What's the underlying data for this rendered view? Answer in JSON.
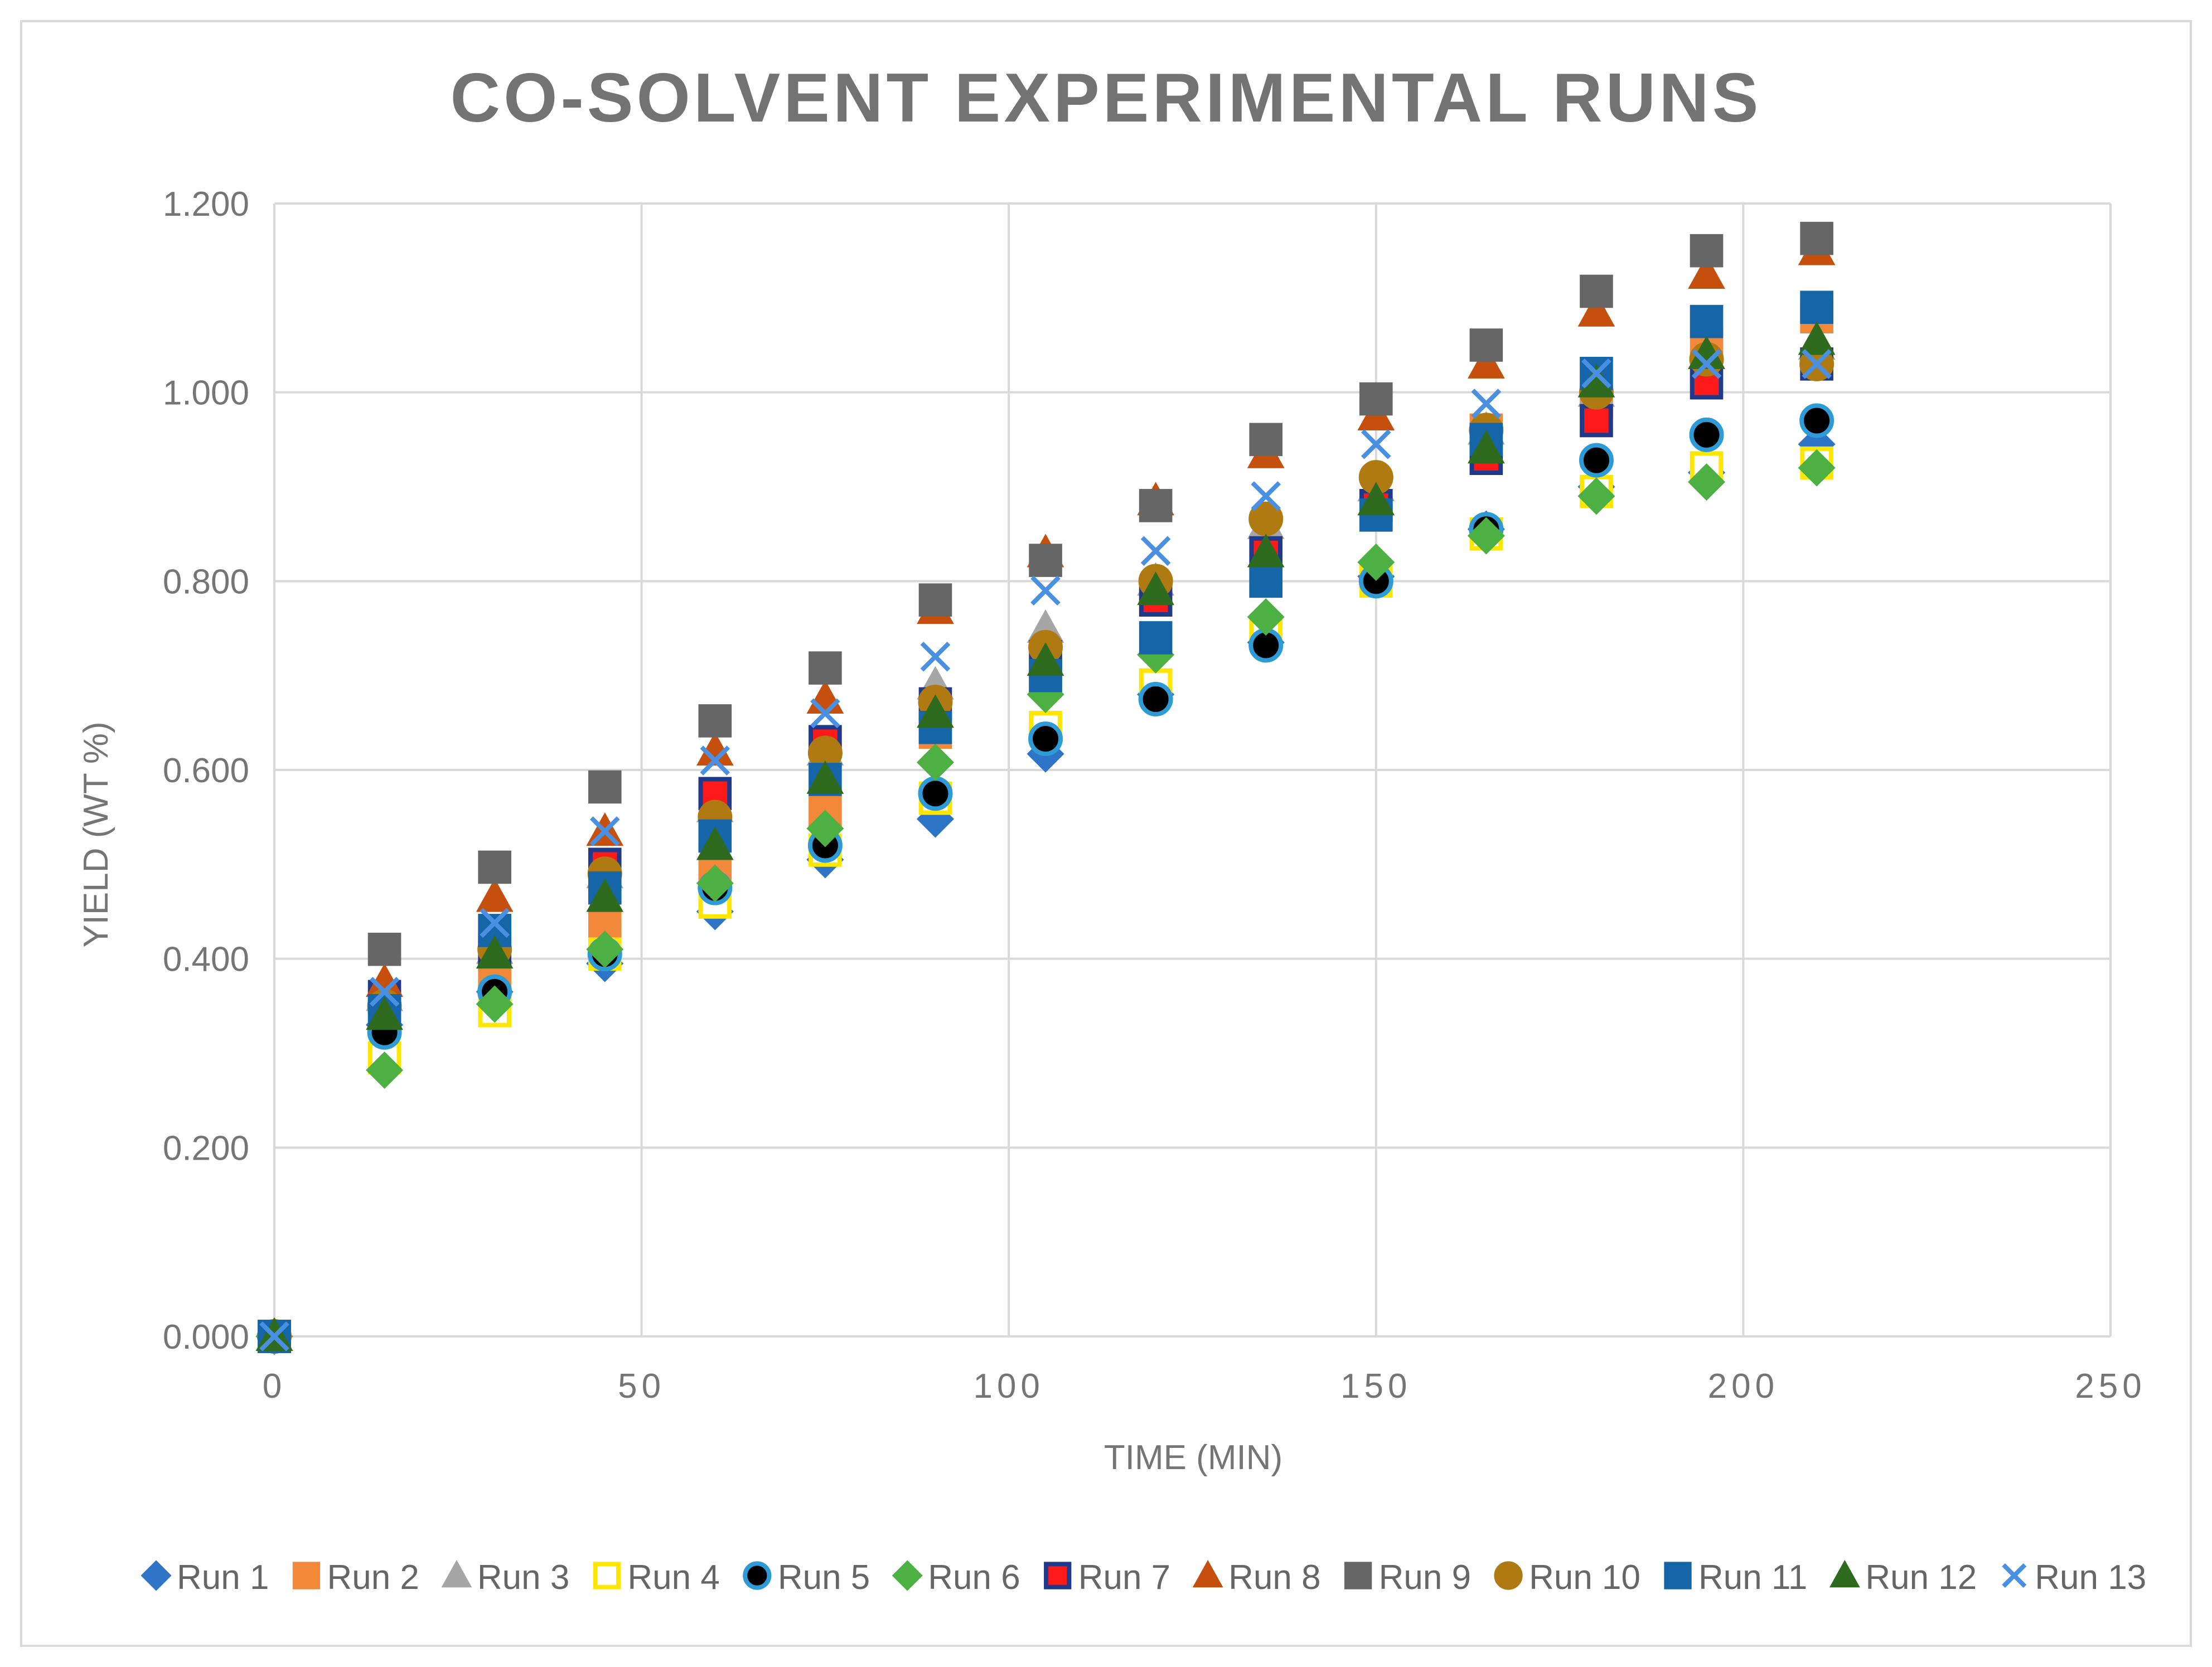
{
  "chart_data": {
    "type": "scatter",
    "title": "CO-SOLVENT EXPERIMENTAL RUNS",
    "xlabel": "TIME (MIN)",
    "ylabel": "YIELD (WT %)",
    "xlim": [
      0,
      250
    ],
    "ylim": [
      0,
      1.2
    ],
    "xticks": [
      "0",
      "50",
      "100",
      "150",
      "200",
      "250"
    ],
    "yticks": [
      "0.000",
      "0.200",
      "0.400",
      "0.600",
      "0.800",
      "1.000",
      "1.200"
    ],
    "grid": true,
    "legend_position": "bottom",
    "x": [
      0,
      15,
      30,
      45,
      60,
      75,
      90,
      105,
      120,
      135,
      150,
      165,
      180,
      195,
      210
    ],
    "series": [
      {
        "name": "Run 1",
        "marker": "diamond",
        "color": "#2E75C8",
        "stroke": "#2E75C8",
        "values": [
          0,
          0.33,
          0.365,
          0.395,
          0.45,
          0.505,
          0.548,
          0.617,
          0.68,
          0.735,
          0.805,
          0.855,
          0.9,
          0.915,
          0.945
        ]
      },
      {
        "name": "Run 2",
        "marker": "square",
        "color": "#F2883A",
        "stroke": "#F2883A",
        "values": [
          0,
          0.35,
          0.385,
          0.435,
          0.49,
          0.555,
          0.64,
          0.7,
          0.78,
          0.8,
          0.88,
          0.96,
          0.99,
          1.05,
          1.08
        ]
      },
      {
        "name": "Run 3",
        "marker": "triangle",
        "color": "#A6A6A6",
        "stroke": "#A6A6A6",
        "values": [
          0,
          0.36,
          0.41,
          0.49,
          0.56,
          0.62,
          0.69,
          0.75,
          0.8,
          0.86,
          0.9,
          0.96,
          1.0,
          1.04,
          1.05
        ]
      },
      {
        "name": "Run 4",
        "marker": "square",
        "color": "#FFFFFF",
        "stroke": "#FFE600",
        "values": [
          0,
          0.295,
          0.345,
          0.405,
          0.46,
          0.515,
          0.57,
          0.645,
          0.69,
          0.745,
          0.8,
          0.85,
          0.895,
          0.92,
          0.925
        ]
      },
      {
        "name": "Run 5",
        "marker": "circle",
        "color": "#000000",
        "stroke": "#2E9BD6",
        "values": [
          0,
          0.322,
          0.365,
          0.405,
          0.475,
          0.52,
          0.575,
          0.633,
          0.675,
          0.732,
          0.8,
          0.855,
          0.928,
          0.955,
          0.97
        ]
      },
      {
        "name": "Run 6",
        "marker": "diamond",
        "color": "#4CB043",
        "stroke": "#4CB043",
        "values": [
          0,
          0.282,
          0.352,
          0.41,
          0.48,
          0.538,
          0.608,
          0.68,
          0.722,
          0.762,
          0.82,
          0.848,
          0.89,
          0.905,
          0.92
        ]
      },
      {
        "name": "Run 7",
        "marker": "square",
        "color": "#FF1A1A",
        "stroke": "#1F3A8A",
        "values": [
          0,
          0.36,
          0.41,
          0.5,
          0.575,
          0.63,
          0.67,
          0.72,
          0.78,
          0.83,
          0.88,
          0.93,
          0.97,
          1.01,
          1.03
        ]
      },
      {
        "name": "Run 8",
        "marker": "triangle",
        "color": "#C5500E",
        "stroke": "#C5500E",
        "values": [
          0,
          0.375,
          0.465,
          0.535,
          0.62,
          0.675,
          0.77,
          0.83,
          0.885,
          0.935,
          0.975,
          1.03,
          1.085,
          1.125,
          1.15
        ]
      },
      {
        "name": "Run 9",
        "marker": "square",
        "color": "#666666",
        "stroke": "#666666",
        "values": [
          0,
          0.41,
          0.497,
          0.582,
          0.652,
          0.708,
          0.78,
          0.822,
          0.88,
          0.95,
          0.993,
          1.05,
          1.107,
          1.15,
          1.163
        ]
      },
      {
        "name": "Run 10",
        "marker": "circle",
        "color": "#B07A13",
        "stroke": "#B07A13",
        "values": [
          0,
          0.35,
          0.41,
          0.49,
          0.55,
          0.618,
          0.672,
          0.73,
          0.8,
          0.866,
          0.91,
          0.96,
          1.0,
          1.035,
          1.03
        ]
      },
      {
        "name": "Run 11",
        "marker": "square",
        "color": "#1565A8",
        "stroke": "#1565A8",
        "values": [
          0,
          0.345,
          0.43,
          0.475,
          0.53,
          0.59,
          0.645,
          0.7,
          0.74,
          0.8,
          0.87,
          0.95,
          1.02,
          1.075,
          1.09
        ]
      },
      {
        "name": "Run 12",
        "marker": "triangle",
        "color": "#2E6B1F",
        "stroke": "#2E6B1F",
        "values": [
          0,
          0.34,
          0.405,
          0.465,
          0.52,
          0.59,
          0.66,
          0.715,
          0.79,
          0.83,
          0.885,
          0.94,
          1.01,
          1.04,
          1.055
        ]
      },
      {
        "name": "Run 13",
        "marker": "x",
        "color": "#4A90E2",
        "stroke": "#4A90E2",
        "values": [
          0,
          0.365,
          0.438,
          0.535,
          0.61,
          0.66,
          0.72,
          0.79,
          0.832,
          0.89,
          0.945,
          0.988,
          1.02,
          1.03,
          1.03
        ]
      }
    ]
  }
}
